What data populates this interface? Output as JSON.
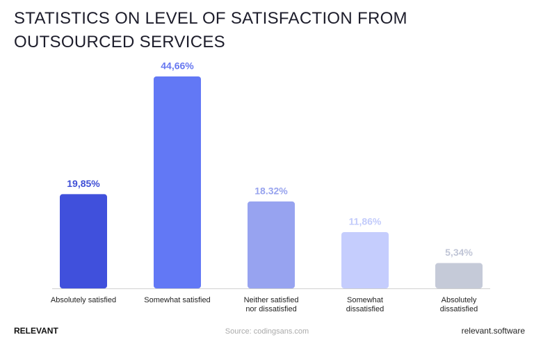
{
  "chart_data": {
    "type": "bar",
    "title": "STATISTICS ON LEVEL OF SATISFACTION FROM OUTSOURCED SERVICES",
    "categories": [
      [
        "Absolutely satisfied"
      ],
      [
        "Somewhat satisfied"
      ],
      [
        "Neither satisfied",
        "nor dissatisfied"
      ],
      [
        "Somewhat",
        "dissatisfied"
      ],
      [
        "Absolutely",
        "dissatisfied"
      ]
    ],
    "values": [
      19.85,
      44.66,
      18.32,
      11.86,
      5.34
    ],
    "value_labels": [
      "19,85%",
      "44,66%",
      "18.32%",
      "11,86%",
      "5,34%"
    ],
    "colors": [
      "#4050dc",
      "#6278f5",
      "#97a3f0",
      "#c5cdfd",
      "#c5cad8"
    ],
    "label_colors": [
      "#3f4fd6",
      "#6677f0",
      "#97a3ee",
      "#c2cbfb",
      "#c0c5d6"
    ]
  },
  "footer": {
    "brand": "RELEVANT",
    "source": "Source: codingsans.com",
    "site": "relevant.software"
  }
}
